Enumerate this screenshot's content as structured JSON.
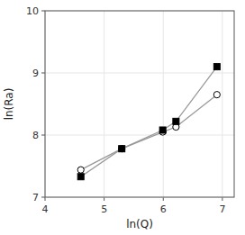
{
  "chart_data": {
    "type": "line",
    "xlabel": "ln(Q)",
    "ylabel": "ln(Ra)",
    "x": [
      4.605,
      5.298,
      5.991,
      6.215,
      6.908
    ],
    "series": [
      {
        "values": [
          7.44,
          7.78,
          8.05,
          8.13,
          8.65
        ],
        "color": "#999999",
        "marker": "open-circle"
      },
      {
        "values": [
          7.33,
          7.78,
          8.08,
          8.22,
          9.1
        ],
        "color": "#999999",
        "marker": "filled-square"
      }
    ],
    "xlim": [
      4.0,
      7.2
    ],
    "ylim": [
      7.0,
      10.0
    ],
    "xticks": [
      4,
      5,
      6,
      7
    ],
    "yticks": [
      7,
      8,
      9,
      10
    ]
  }
}
